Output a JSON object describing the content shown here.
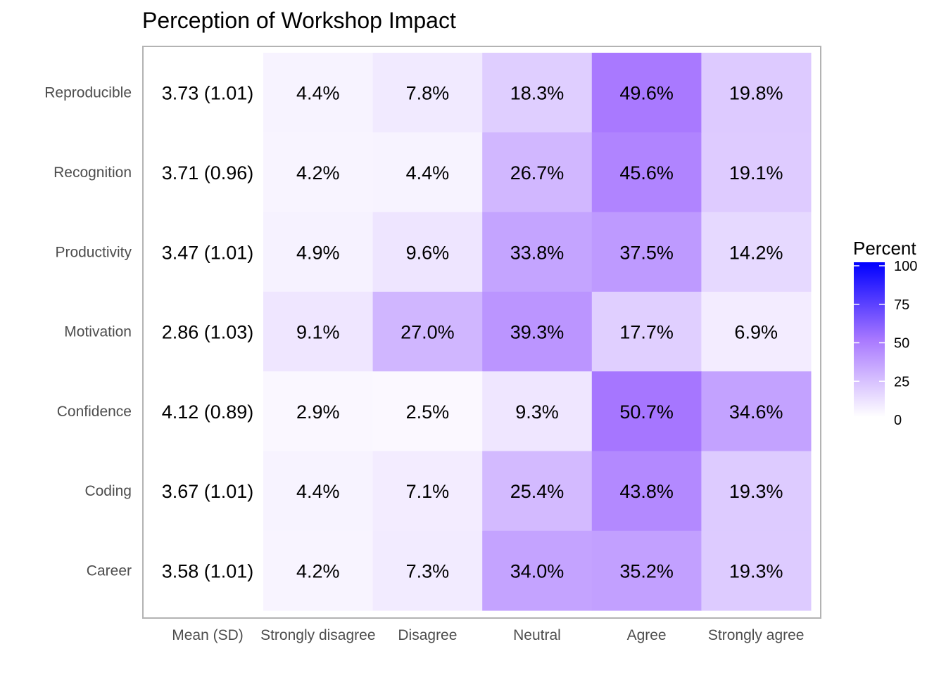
{
  "chart_data": {
    "type": "heatmap",
    "title": "Perception of Workshop Impact",
    "mean_column_label": "Mean (SD)",
    "columns": [
      "Strongly disagree",
      "Disagree",
      "Neutral",
      "Agree",
      "Strongly agree"
    ],
    "rows": [
      {
        "label": "Reproducible",
        "mean_sd": "3.73 (1.01)",
        "values": [
          4.4,
          7.8,
          18.3,
          49.6,
          19.8
        ],
        "labels": [
          "4.4%",
          "7.8%",
          "18.3%",
          "49.6%",
          "19.8%"
        ]
      },
      {
        "label": "Recognition",
        "mean_sd": "3.71 (0.96)",
        "values": [
          4.2,
          4.4,
          26.7,
          45.6,
          19.1
        ],
        "labels": [
          "4.2%",
          "4.4%",
          "26.7%",
          "45.6%",
          "19.1%"
        ]
      },
      {
        "label": "Productivity",
        "mean_sd": "3.47 (1.01)",
        "values": [
          4.9,
          9.6,
          33.8,
          37.5,
          14.2
        ],
        "labels": [
          "4.9%",
          "9.6%",
          "33.8%",
          "37.5%",
          "14.2%"
        ]
      },
      {
        "label": "Motivation",
        "mean_sd": "2.86 (1.03)",
        "values": [
          9.1,
          27.0,
          39.3,
          17.7,
          6.9
        ],
        "labels": [
          "9.1%",
          "27.0%",
          "39.3%",
          "17.7%",
          "6.9%"
        ]
      },
      {
        "label": "Confidence",
        "mean_sd": "4.12 (0.89)",
        "values": [
          2.9,
          2.5,
          9.3,
          50.7,
          34.6
        ],
        "labels": [
          "2.9%",
          "2.5%",
          "9.3%",
          "50.7%",
          "34.6%"
        ]
      },
      {
        "label": "Coding",
        "mean_sd": "3.67 (1.01)",
        "values": [
          4.4,
          7.1,
          25.4,
          43.8,
          19.3
        ],
        "labels": [
          "4.4%",
          "7.1%",
          "25.4%",
          "43.8%",
          "19.3%"
        ]
      },
      {
        "label": "Career",
        "mean_sd": "3.58 (1.01)",
        "values": [
          4.2,
          7.3,
          34.0,
          35.2,
          19.3
        ],
        "labels": [
          "4.2%",
          "7.3%",
          "34.0%",
          "35.2%",
          "19.3%"
        ]
      }
    ],
    "legend": {
      "title": "Percent",
      "ticks": [
        0,
        25,
        50,
        75,
        100
      ],
      "range": [
        0,
        100
      ],
      "low_color": "#ffffff",
      "high_color": "#0000ff",
      "placement": "right"
    },
    "grid": false
  }
}
